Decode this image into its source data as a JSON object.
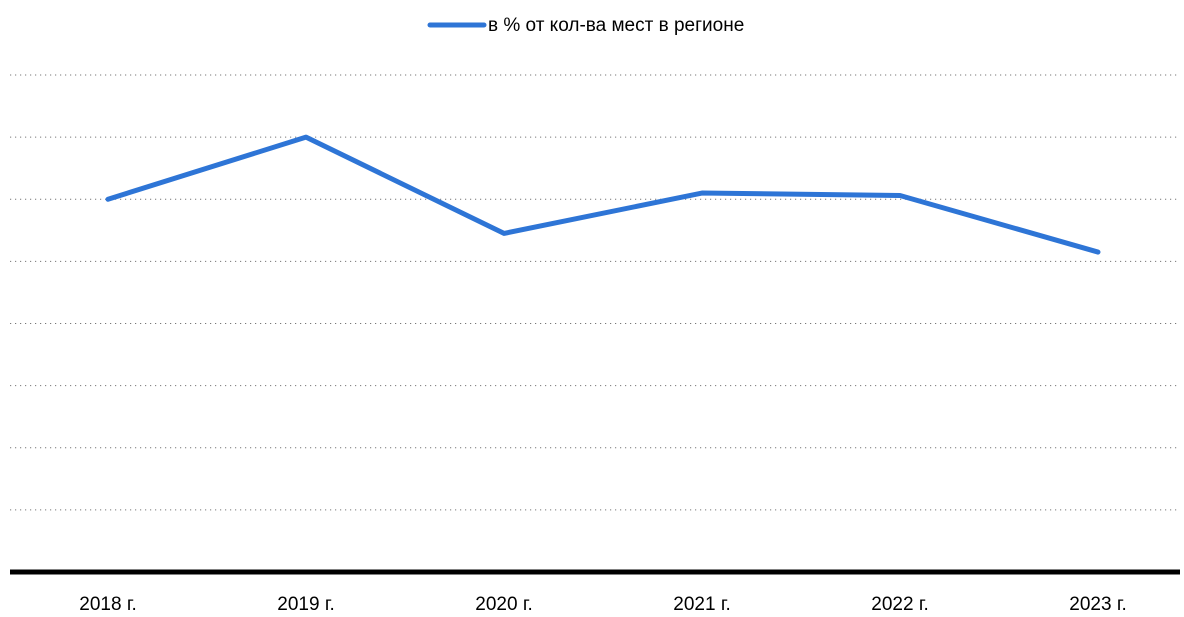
{
  "chart_data": {
    "type": "line",
    "categories": [
      "2018 г.",
      "2019 г.",
      "2020 г.",
      "2021 г.",
      "2022 г.",
      "2023 г."
    ],
    "series": [
      {
        "name": "в % от кол-ва мест в регионе",
        "color": "#2e75d6",
        "values": [
          6.0,
          7.0,
          5.45,
          6.1,
          6.06,
          5.15
        ]
      }
    ],
    "ylim": [
      0,
      8
    ],
    "yticks": [
      0,
      1,
      2,
      3,
      4,
      5,
      6,
      7,
      8
    ],
    "grid": true,
    "legend": "top"
  }
}
